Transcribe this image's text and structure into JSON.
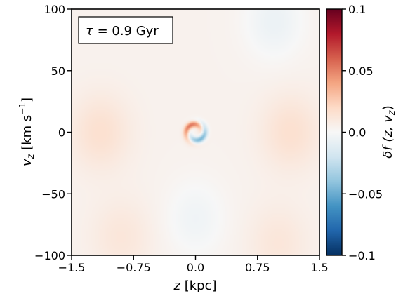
{
  "chart_data": {
    "type": "heatmap",
    "title": "",
    "annotation": "τ = 0.9 Gyr",
    "annotation_parts": {
      "symbol": "τ",
      "rest": " = 0.9 Gyr"
    },
    "xlabel": {
      "var": "z",
      "unit": " [kpc]"
    },
    "ylabel": {
      "var": "v",
      "sub": "z",
      "unit_pre": " [km s",
      "sup": "−1",
      "unit_post": "]"
    },
    "colorbar_label": {
      "text": "δf (z, v",
      "sub": "z",
      "close": ")"
    },
    "xlim": [
      -1.5,
      1.5
    ],
    "ylim": [
      -100,
      100
    ],
    "xticks": [
      -1.5,
      -0.75,
      0.0,
      0.75,
      1.5
    ],
    "xtick_labels": [
      "−1.5",
      "−0.75",
      "0.0",
      "0.75",
      "1.5"
    ],
    "yticks": [
      100,
      50,
      0,
      -50,
      -100
    ],
    "ytick_labels": [
      "100",
      "50",
      "0",
      "−50",
      "−100"
    ],
    "clim": [
      -0.1,
      0.1
    ],
    "cticks": [
      0.1,
      0.05,
      0.0,
      -0.05,
      -0.1
    ],
    "ctick_labels": [
      "0.1",
      "0.05",
      "0.0",
      "−0.05",
      "−0.1"
    ],
    "colormap": "RdBu_r",
    "colormap_stops": [
      "#053061",
      "#2166ac",
      "#4393c3",
      "#92c5de",
      "#d1e5f0",
      "#f7f7f7",
      "#fddbc7",
      "#f4a582",
      "#d6604d",
      "#b2182b",
      "#67001f"
    ],
    "background_value": 0.004,
    "features": [
      {
        "kind": "spiral-center",
        "x": 0.0,
        "y": 0,
        "amplitude": 0.05
      },
      {
        "kind": "mild-positive",
        "x": -1.15,
        "y": 0,
        "amplitude": 0.012
      },
      {
        "kind": "mild-positive",
        "x": 1.15,
        "y": 0,
        "amplitude": 0.012
      },
      {
        "kind": "mild-negative",
        "x": 0.95,
        "y": 90,
        "amplitude": -0.01
      },
      {
        "kind": "mild-negative",
        "x": 0.0,
        "y": -70,
        "amplitude": -0.008
      },
      {
        "kind": "mild-positive",
        "x": -0.9,
        "y": -85,
        "amplitude": 0.008
      },
      {
        "kind": "mild-positive",
        "x": 1.0,
        "y": -90,
        "amplitude": 0.008
      }
    ]
  }
}
